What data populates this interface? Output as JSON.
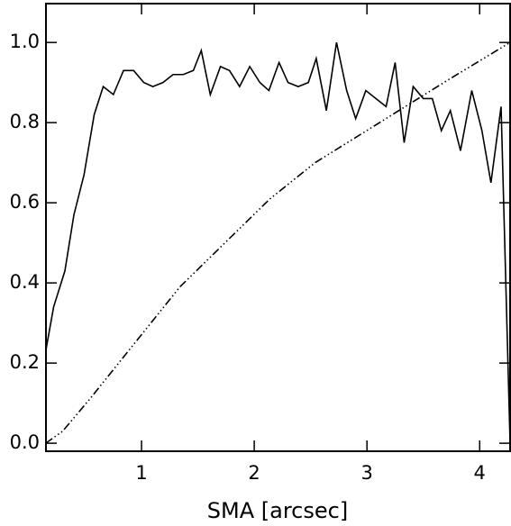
{
  "chart_data": {
    "type": "line",
    "xlabel": "SMA [arcsec]",
    "xlim": [
      0.152,
      4.27
    ],
    "ylim": [
      -0.02,
      1.097
    ],
    "xticks": [
      1,
      2,
      3,
      4
    ],
    "yticks": [
      {
        "value": 0,
        "label": "0.0"
      },
      {
        "value": 0.2,
        "label": "0.2"
      },
      {
        "value": 0.4,
        "label": "0.4"
      },
      {
        "value": 0.6,
        "label": "0.6"
      },
      {
        "value": 0.8,
        "label": "0.8"
      },
      {
        "value": 1,
        "label": "1.0"
      }
    ],
    "series": [
      {
        "color": "#000000",
        "line_style": "solid",
        "x": [
          0.15,
          0.22,
          0.32,
          0.4,
          0.49,
          0.58,
          0.66,
          0.75,
          0.84,
          0.93,
          1.02,
          1.1,
          1.19,
          1.28,
          1.37,
          1.46,
          1.53,
          1.61,
          1.7,
          1.78,
          1.87,
          1.96,
          2.05,
          2.13,
          2.22,
          2.3,
          2.39,
          2.48,
          2.55,
          2.64,
          2.73,
          2.82,
          2.9,
          2.99,
          3.08,
          3.17,
          3.25,
          3.33,
          3.41,
          3.5,
          3.58,
          3.66,
          3.74,
          3.83,
          3.93,
          4.02,
          4.1,
          4.19,
          4.27
        ],
        "values": [
          0.23,
          0.34,
          0.43,
          0.57,
          0.67,
          0.82,
          0.89,
          0.87,
          0.93,
          0.93,
          0.9,
          0.89,
          0.9,
          0.92,
          0.92,
          0.93,
          0.98,
          0.87,
          0.94,
          0.93,
          0.89,
          0.94,
          0.9,
          0.88,
          0.95,
          0.9,
          0.89,
          0.9,
          0.96,
          0.83,
          1.0,
          0.88,
          0.81,
          0.88,
          0.86,
          0.84,
          0.95,
          0.75,
          0.89,
          0.86,
          0.86,
          0.78,
          0.83,
          0.73,
          0.88,
          0.78,
          0.65,
          0.84,
          0.0
        ]
      },
      {
        "color": "#000000",
        "line_style": "dash-dot-dot-dot",
        "x": [
          0.15,
          0.3,
          0.54,
          0.94,
          1.34,
          1.74,
          2.14,
          2.54,
          2.94,
          3.34,
          3.74,
          4.27
        ],
        "values": [
          0.0,
          0.03,
          0.11,
          0.25,
          0.39,
          0.5,
          0.61,
          0.7,
          0.77,
          0.84,
          0.91,
          1.0
        ]
      }
    ]
  }
}
